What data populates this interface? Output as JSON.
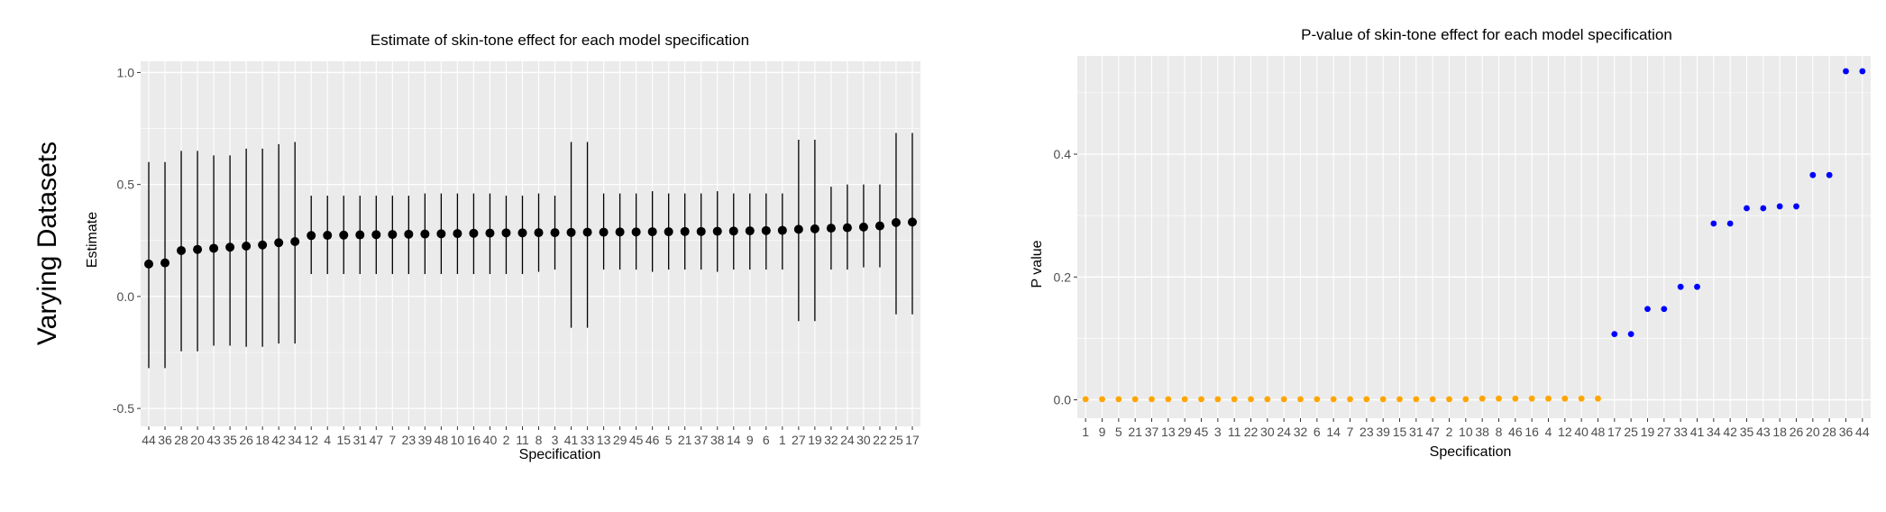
{
  "side_label": "Varying Datasets",
  "colors": {
    "panel_bg": "#ebebeb",
    "grid": "#ffffff",
    "tick_text": "#4d4d4d",
    "estimate_point": "#000000",
    "pvalue_significant": "#ffa500",
    "pvalue_not_significant": "#0000ff"
  },
  "chart_data": [
    {
      "type": "scatter",
      "title": "Estimate of skin-tone effect for each model specification",
      "xlabel": "Specification",
      "ylabel": "Estimate",
      "ylim": [
        -0.58,
        1.05
      ],
      "yticks": [
        -0.5,
        0.0,
        0.5,
        1.0
      ],
      "ytick_labels": [
        "-0.5",
        "0.0",
        "0.5",
        "1.0"
      ],
      "grid": true,
      "categories": [
        "44",
        "36",
        "28",
        "20",
        "43",
        "35",
        "26",
        "18",
        "42",
        "34",
        "12",
        "4",
        "15",
        "31",
        "47",
        "7",
        "23",
        "39",
        "48",
        "10",
        "16",
        "40",
        "2",
        "11",
        "8",
        "3",
        "41",
        "33",
        "13",
        "29",
        "45",
        "46",
        "5",
        "21",
        "37",
        "38",
        "14",
        "9",
        "6",
        "1",
        "27",
        "19",
        "32",
        "24",
        "30",
        "22",
        "25",
        "17"
      ],
      "estimate": [
        0.145,
        0.15,
        0.205,
        0.21,
        0.215,
        0.22,
        0.225,
        0.23,
        0.24,
        0.245,
        0.272,
        0.273,
        0.274,
        0.275,
        0.276,
        0.277,
        0.278,
        0.279,
        0.28,
        0.281,
        0.282,
        0.283,
        0.284,
        0.284,
        0.285,
        0.285,
        0.286,
        0.287,
        0.287,
        0.288,
        0.288,
        0.289,
        0.289,
        0.29,
        0.29,
        0.291,
        0.292,
        0.293,
        0.294,
        0.295,
        0.3,
        0.302,
        0.305,
        0.307,
        0.31,
        0.315,
        0.33,
        0.332
      ],
      "lower": [
        -0.32,
        -0.32,
        -0.245,
        -0.245,
        -0.22,
        -0.22,
        -0.225,
        -0.225,
        -0.21,
        -0.21,
        0.1,
        0.1,
        0.1,
        0.1,
        0.1,
        0.1,
        0.1,
        0.1,
        0.1,
        0.1,
        0.1,
        0.1,
        0.1,
        0.1,
        0.11,
        0.12,
        -0.14,
        -0.14,
        0.12,
        0.12,
        0.12,
        0.11,
        0.12,
        0.12,
        0.12,
        0.11,
        0.12,
        0.12,
        0.12,
        0.12,
        -0.11,
        -0.11,
        0.12,
        0.12,
        0.13,
        0.13,
        -0.08,
        -0.08
      ],
      "upper": [
        0.6,
        0.6,
        0.65,
        0.65,
        0.63,
        0.63,
        0.66,
        0.66,
        0.68,
        0.69,
        0.45,
        0.45,
        0.45,
        0.45,
        0.45,
        0.45,
        0.45,
        0.46,
        0.46,
        0.46,
        0.46,
        0.46,
        0.45,
        0.45,
        0.46,
        0.45,
        0.69,
        0.69,
        0.46,
        0.46,
        0.46,
        0.47,
        0.46,
        0.46,
        0.46,
        0.47,
        0.46,
        0.46,
        0.46,
        0.46,
        0.7,
        0.7,
        0.49,
        0.5,
        0.5,
        0.5,
        0.73,
        0.73
      ]
    },
    {
      "type": "scatter",
      "title": "P-value of skin-tone effect for each model specification",
      "xlabel": "Specification",
      "ylabel": "P value",
      "ylim": [
        -0.03,
        0.56
      ],
      "yticks": [
        0.0,
        0.2,
        0.4
      ],
      "ytick_labels": [
        "0.0",
        "0.2",
        "0.4"
      ],
      "grid": true,
      "categories": [
        "1",
        "9",
        "5",
        "21",
        "37",
        "13",
        "29",
        "45",
        "3",
        "11",
        "22",
        "30",
        "24",
        "32",
        "6",
        "14",
        "7",
        "23",
        "39",
        "15",
        "31",
        "47",
        "2",
        "10",
        "38",
        "8",
        "46",
        "16",
        "4",
        "12",
        "40",
        "48",
        "17",
        "25",
        "19",
        "27",
        "33",
        "41",
        "34",
        "42",
        "35",
        "43",
        "18",
        "26",
        "20",
        "28",
        "36",
        "44"
      ],
      "values": [
        0.001,
        0.001,
        0.001,
        0.001,
        0.001,
        0.001,
        0.001,
        0.001,
        0.001,
        0.001,
        0.001,
        0.001,
        0.001,
        0.001,
        0.001,
        0.001,
        0.001,
        0.001,
        0.001,
        0.001,
        0.001,
        0.001,
        0.001,
        0.001,
        0.002,
        0.002,
        0.002,
        0.002,
        0.002,
        0.002,
        0.002,
        0.002,
        0.107,
        0.107,
        0.148,
        0.148,
        0.184,
        0.184,
        0.287,
        0.287,
        0.312,
        0.312,
        0.315,
        0.315,
        0.366,
        0.366,
        0.535,
        0.535
      ],
      "significant": [
        true,
        true,
        true,
        true,
        true,
        true,
        true,
        true,
        true,
        true,
        true,
        true,
        true,
        true,
        true,
        true,
        true,
        true,
        true,
        true,
        true,
        true,
        true,
        true,
        true,
        true,
        true,
        true,
        true,
        true,
        true,
        true,
        false,
        false,
        false,
        false,
        false,
        false,
        false,
        false,
        false,
        false,
        false,
        false,
        false,
        false,
        false,
        false
      ]
    }
  ]
}
